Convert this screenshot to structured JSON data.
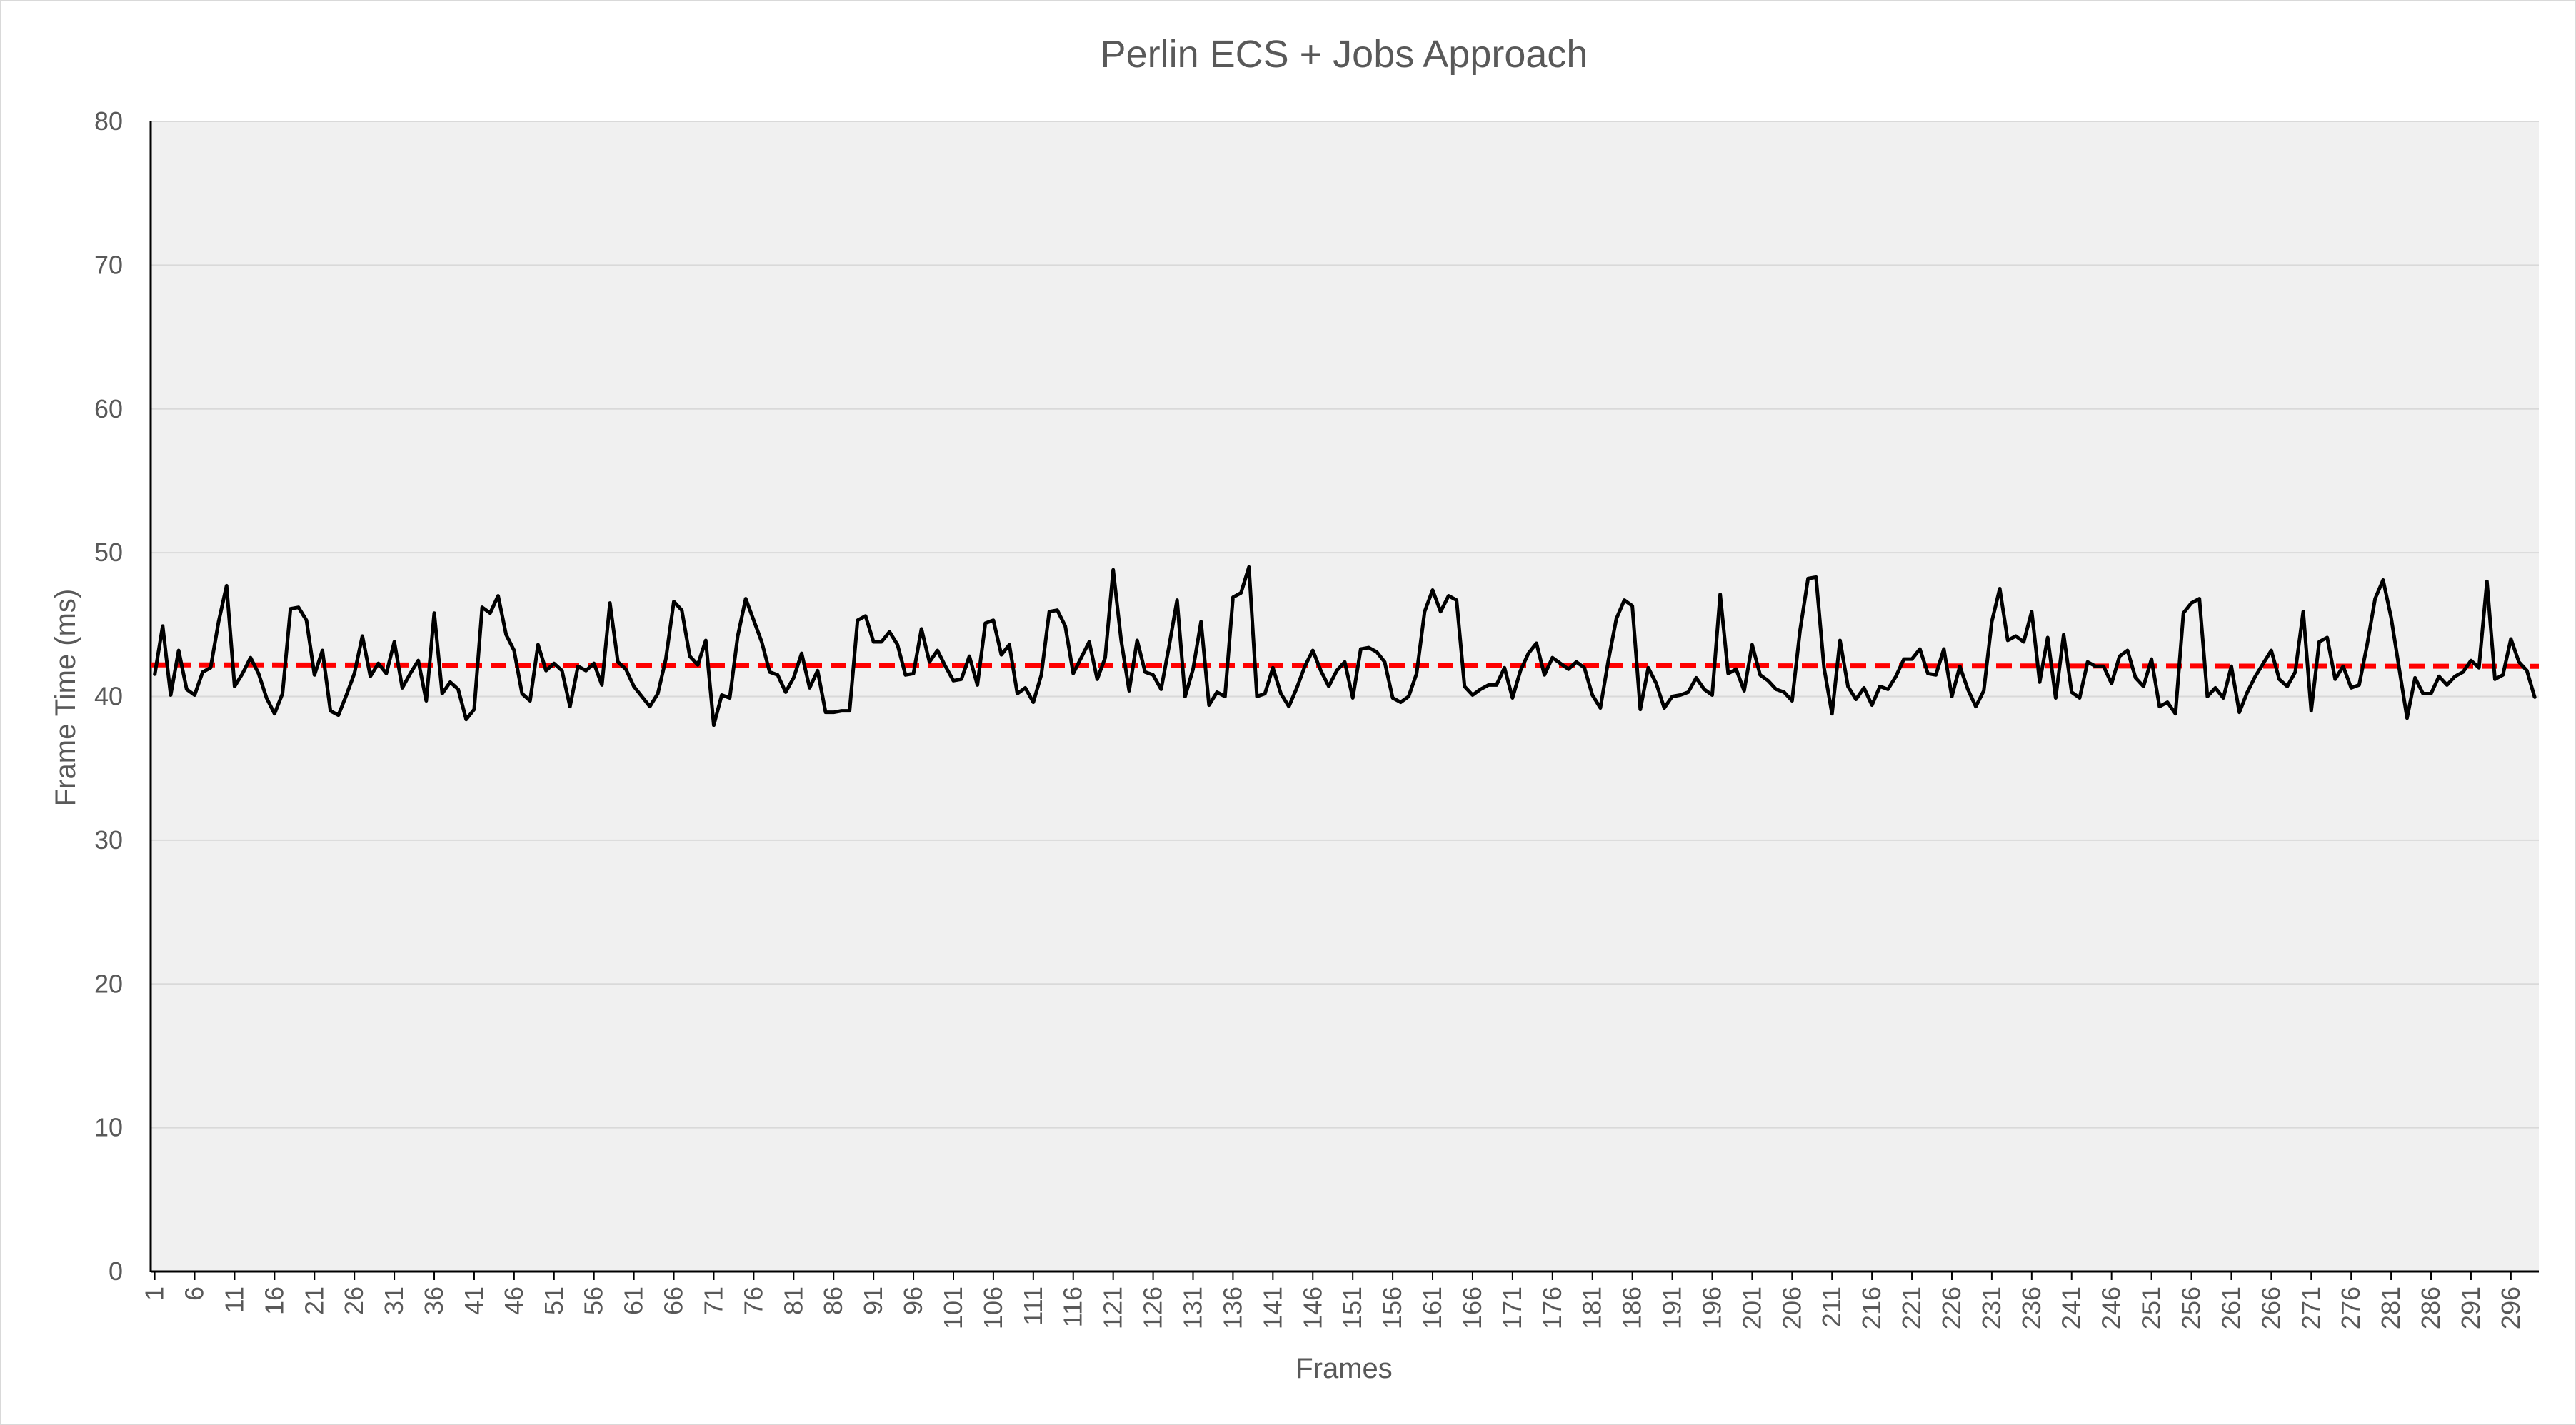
{
  "chart_data": {
    "type": "line",
    "title": "Perlin ECS + Jobs Approach",
    "xlabel": "Frames",
    "ylabel": "Frame Time (ms)",
    "ylim": [
      0,
      80
    ],
    "y_ticks": [
      0,
      10,
      20,
      30,
      40,
      50,
      60,
      70,
      80
    ],
    "x_tick_labels": [
      "1",
      "6",
      "11",
      "16",
      "21",
      "26",
      "31",
      "36",
      "41",
      "46",
      "51",
      "56",
      "61",
      "66",
      "71",
      "76",
      "81",
      "86",
      "91",
      "96",
      "101",
      "106",
      "111",
      "116",
      "121",
      "126",
      "131",
      "136",
      "141",
      "146",
      "151",
      "156",
      "161",
      "166",
      "171",
      "176",
      "181",
      "186",
      "191",
      "196",
      "201",
      "206",
      "211",
      "216",
      "221",
      "226",
      "231",
      "236",
      "241",
      "246",
      "251",
      "256",
      "261",
      "266",
      "271",
      "276",
      "281",
      "286",
      "291",
      "296"
    ],
    "grid": "horizontal",
    "legend": "none",
    "series": [
      {
        "style": "solid",
        "color": "#000000",
        "x_start": 1,
        "values": [
          41.5,
          44.9,
          40.1,
          43.2,
          40.5,
          40.1,
          41.7,
          42.0,
          45.2,
          47.7,
          40.7,
          41.6,
          42.7,
          41.6,
          39.9,
          38.8,
          40.2,
          46.1,
          46.2,
          45.3,
          41.5,
          43.2,
          39.0,
          38.7,
          40.1,
          41.6,
          44.2,
          41.4,
          42.3,
          41.6,
          43.8,
          40.6,
          41.6,
          42.5,
          39.7,
          45.8,
          40.2,
          41.0,
          40.5,
          38.4,
          39.1,
          46.2,
          45.8,
          47.0,
          44.3,
          43.2,
          40.2,
          39.7,
          43.6,
          41.8,
          42.3,
          41.8,
          39.3,
          42.1,
          41.8,
          42.3,
          40.8,
          46.5,
          42.4,
          41.9,
          40.7,
          40.0,
          39.3,
          40.2,
          42.6,
          46.6,
          46.0,
          42.8,
          42.2,
          43.9,
          38.0,
          40.1,
          39.9,
          44.2,
          46.8,
          45.3,
          43.8,
          41.7,
          41.5,
          40.3,
          41.3,
          43.0,
          40.6,
          41.8,
          38.9,
          38.9,
          39.0,
          39.0,
          45.3,
          45.6,
          43.8,
          43.8,
          44.5,
          43.6,
          41.5,
          41.6,
          44.7,
          42.4,
          43.2,
          42.1,
          41.1,
          41.2,
          42.8,
          40.8,
          45.1,
          45.3,
          42.9,
          43.6,
          40.2,
          40.6,
          39.6,
          41.5,
          45.9,
          46.0,
          44.9,
          41.6,
          42.7,
          43.8,
          41.2,
          42.7,
          48.8,
          43.9,
          40.4,
          43.9,
          41.7,
          41.5,
          40.5,
          43.5,
          46.7,
          40.0,
          41.9,
          45.2,
          39.4,
          40.3,
          40.0,
          46.9,
          47.2,
          49.0,
          40.0,
          40.2,
          42.0,
          40.2,
          39.3,
          40.6,
          42.1,
          43.2,
          41.8,
          40.7,
          41.8,
          42.4,
          39.9,
          43.3,
          43.4,
          43.1,
          42.4,
          39.9,
          39.6,
          40.0,
          41.6,
          45.9,
          47.4,
          45.9,
          47.0,
          46.7,
          40.7,
          40.1,
          40.5,
          40.8,
          40.8,
          42.0,
          39.9,
          41.8,
          43.0,
          43.7,
          41.5,
          42.7,
          42.3,
          41.9,
          42.4,
          42.0,
          40.1,
          39.2,
          42.5,
          45.4,
          46.7,
          46.3,
          39.1,
          42.0,
          40.9,
          39.2,
          40.0,
          40.1,
          40.3,
          41.3,
          40.5,
          40.1,
          47.1,
          41.6,
          41.9,
          40.4,
          43.6,
          41.5,
          41.1,
          40.5,
          40.3,
          39.7,
          44.6,
          48.2,
          48.3,
          42.0,
          38.8,
          43.9,
          40.7,
          39.8,
          40.6,
          39.4,
          40.7,
          40.5,
          41.4,
          42.6,
          42.6,
          43.3,
          41.6,
          41.5,
          43.3,
          40.0,
          42.1,
          40.5,
          39.3,
          40.4,
          45.2,
          47.5,
          43.9,
          44.2,
          43.8,
          45.9,
          41.0,
          44.1,
          39.9,
          44.3,
          40.3,
          39.9,
          42.4,
          42.1,
          42.1,
          40.9,
          42.8,
          43.2,
          41.3,
          40.7,
          42.6,
          39.3,
          39.6,
          38.8,
          45.8,
          46.5,
          46.8,
          40.0,
          40.6,
          39.9,
          42.1,
          38.9,
          40.3,
          41.4,
          42.3,
          43.2,
          41.2,
          40.7,
          41.7,
          45.9,
          39.0,
          43.8,
          44.1,
          41.2,
          42.1,
          40.6,
          40.8,
          43.6,
          46.8,
          48.1,
          45.5,
          42.0,
          38.5,
          41.3,
          40.2,
          40.2,
          41.4,
          40.8,
          41.4,
          41.7,
          42.5,
          42.0,
          48.0,
          41.2,
          41.5,
          44.0,
          42.4,
          41.8,
          39.9
        ]
      },
      {
        "style": "dashed",
        "color": "#ff0000",
        "values": [
          42.2,
          42.1
        ]
      }
    ]
  }
}
